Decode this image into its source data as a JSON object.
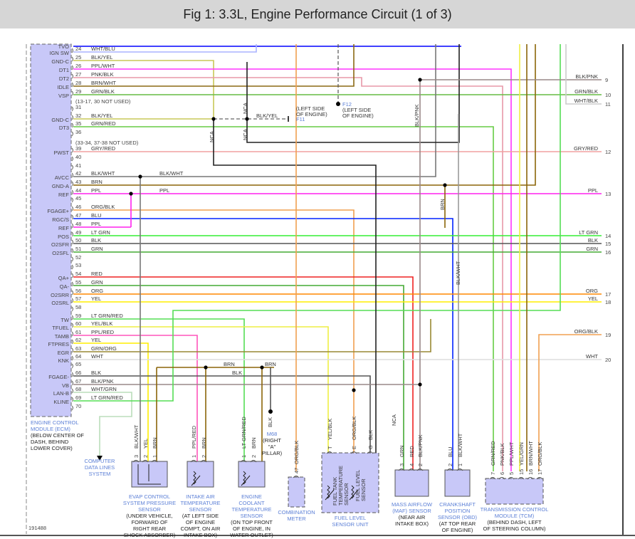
{
  "title": "Fig 1: 3.3L, Engine Performance Circuit (1 of 3)",
  "figure_id": "191488",
  "ecm": {
    "name_lines": [
      "ENGINE CONTROL",
      "MODULE (ECM)"
    ],
    "location_lines": [
      "(BELOW CENTER OF",
      "DASH, BEHIND",
      "LOWER COVER)"
    ],
    "top_pin_name": "TVO",
    "top_pin_color": "#0000ff",
    "notes": [
      "(13-17, 30 NOT USED)",
      "(33-34, 37-38 NOT USED)"
    ],
    "pins": [
      {
        "num": "24",
        "name": "IGN SW",
        "wire": "WHT/BLU",
        "color": "#aab4ff"
      },
      {
        "num": "25",
        "name": "GND-C",
        "wire": "BLK/YEL",
        "color": "#c8c858"
      },
      {
        "num": "26",
        "name": "DT1",
        "wire": "PPL/WHT",
        "color": "#ff33ff"
      },
      {
        "num": "27",
        "name": "DT2",
        "wire": "PNK/BLK",
        "color": "#e898a8"
      },
      {
        "num": "28",
        "name": "IDLE",
        "wire": "BRN/WHT",
        "color": "#8b6914"
      },
      {
        "num": "29",
        "name": "VSP",
        "wire": "GRN/BLK",
        "color": "#66bb44"
      },
      {
        "num": "31",
        "name": "",
        "wire": "",
        "color": ""
      },
      {
        "num": "32",
        "name": "GND-C",
        "wire": "BLK/YEL",
        "color": "#c8c858"
      },
      {
        "num": "35",
        "name": "DT3",
        "wire": "GRN/RED",
        "color": "#66cc44"
      },
      {
        "num": "36",
        "name": "",
        "wire": "",
        "color": ""
      },
      {
        "num": "39",
        "name": "PWST",
        "wire": "GRY/RED",
        "color": "#f0a0a0"
      },
      {
        "num": "40",
        "name": "",
        "wire": "",
        "color": ""
      },
      {
        "num": "41",
        "name": "",
        "wire": "",
        "color": ""
      },
      {
        "num": "42",
        "name": "AVCC",
        "wire": "BLK/WHT",
        "color": "#777777"
      },
      {
        "num": "43",
        "name": "GND-A",
        "wire": "BRN",
        "color": "#8b6508"
      },
      {
        "num": "44",
        "name": "REF",
        "wire": "PPL",
        "color": "#ff22ee"
      },
      {
        "num": "45",
        "name": "",
        "wire": "",
        "color": ""
      },
      {
        "num": "46",
        "name": "FGAGE+",
        "wire": "ORG/BLK",
        "color": "#f0a050"
      },
      {
        "num": "47",
        "name": "RGC/S",
        "wire": "BLU",
        "color": "#0022ff"
      },
      {
        "num": "48",
        "name": "REF",
        "wire": "PPL",
        "color": "#ff22ee"
      },
      {
        "num": "49",
        "name": "POS",
        "wire": "LT GRN",
        "color": "#33ee33"
      },
      {
        "num": "50",
        "name": "O2SFR",
        "wire": "BLK",
        "color": "#555555"
      },
      {
        "num": "51",
        "name": "O2SFL",
        "wire": "GRN",
        "color": "#44aa33"
      },
      {
        "num": "52",
        "name": "",
        "wire": "",
        "color": ""
      },
      {
        "num": "53",
        "name": "",
        "wire": "",
        "color": ""
      },
      {
        "num": "54",
        "name": "QA+",
        "wire": "RED",
        "color": "#ee2222"
      },
      {
        "num": "55",
        "name": "QA-",
        "wire": "GRN",
        "color": "#44aa33"
      },
      {
        "num": "56",
        "name": "O2SRR",
        "wire": "ORG",
        "color": "#ff8800"
      },
      {
        "num": "57",
        "name": "O2SRL",
        "wire": "YEL",
        "color": "#ffee00"
      },
      {
        "num": "58",
        "name": "",
        "wire": "",
        "color": ""
      },
      {
        "num": "59",
        "name": "TW",
        "wire": "LT GRN/RED",
        "color": "#55dd55"
      },
      {
        "num": "60",
        "name": "TFUEL",
        "wire": "YEL/BLK",
        "color": "#eeee44"
      },
      {
        "num": "61",
        "name": "TAMB",
        "wire": "PPL/RED",
        "color": "#ff55bb"
      },
      {
        "num": "62",
        "name": "FTPRES",
        "wire": "YEL",
        "color": "#ffee00"
      },
      {
        "num": "63",
        "name": "EGR",
        "wire": "GRN/ORG",
        "color": "#998833"
      },
      {
        "num": "64",
        "name": "KNK",
        "wire": "WHT",
        "color": "#dddddd"
      },
      {
        "num": "65",
        "name": "",
        "wire": "",
        "color": ""
      },
      {
        "num": "66",
        "name": "FGAGE-",
        "wire": "BLK",
        "color": "#555555"
      },
      {
        "num": "67",
        "name": "VB",
        "wire": "BLK/PNK",
        "color": "#998888"
      },
      {
        "num": "68",
        "name": "LAN-B",
        "wire": "WHT/GRN",
        "color": "#bbddbb"
      },
      {
        "num": "69",
        "name": "KLINE",
        "wire": "LT GRN/RED",
        "color": "#55dd55"
      },
      {
        "num": "70",
        "name": "",
        "wire": "",
        "color": ""
      }
    ]
  },
  "right_connectors": [
    {
      "num": "9",
      "wire": "BLK/PNK"
    },
    {
      "num": "10",
      "wire": "GRN/BLK"
    },
    {
      "num": "11",
      "wire": "WHT/BLK"
    },
    {
      "num": "12",
      "wire": "GRY/RED"
    },
    {
      "num": "13",
      "wire": "PPL"
    },
    {
      "num": "14",
      "wire": "LT GRN"
    },
    {
      "num": "15",
      "wire": "BLK"
    },
    {
      "num": "16",
      "wire": "GRN"
    },
    {
      "num": "17",
      "wire": "ORG"
    },
    {
      "num": "18",
      "wire": "YEL"
    },
    {
      "num": "19",
      "wire": "ORG/BLK"
    },
    {
      "num": "20",
      "wire": "WHT"
    }
  ],
  "mid_labels": {
    "nca": "NCA",
    "blk_yel": "BLK/YEL",
    "f11": "F11",
    "f12": "F12",
    "left_side_engine": [
      "(LEFT SIDE",
      "OF ENGINE)"
    ],
    "blk_wht": "BLK/WHT",
    "ppl": "PPL",
    "blk_pnk": "BLK/PNK",
    "brn": "BRN",
    "blk": "BLK",
    "m68": "M68",
    "m68_loc": [
      "(RIGHT",
      "\"A\"",
      "PILLAR)"
    ]
  },
  "computer_data_lines": [
    "COMPUTER",
    "DATA LINES",
    "SYSTEM"
  ],
  "components": [
    {
      "id": "evap",
      "name": [
        "EVAP CONTROL",
        "SYSTEM PRESSURE",
        "SENSOR"
      ],
      "loc": [
        "(UNDER VEHICLE,",
        "FORWARD OF",
        "RIGHT REAR",
        "SHOCK ABSORBER)"
      ],
      "pins": [
        {
          "num": "3",
          "wire": "BLK/WHT"
        },
        {
          "num": "2",
          "wire": "YEL"
        },
        {
          "num": "1",
          "wire": "BRN"
        }
      ]
    },
    {
      "id": "iat",
      "name": [
        "INTAKE AIR",
        "TEMPERATURE",
        "SENSOR"
      ],
      "loc": [
        "(AT LEFT SIDE",
        "OF ENGINE",
        "COMPT, ON AIR",
        "INTAKE BOX)"
      ],
      "pins": [
        {
          "num": "1",
          "wire": "PPL/RED"
        },
        {
          "num": "2",
          "wire": "BRN"
        }
      ]
    },
    {
      "id": "ect",
      "name": [
        "ENGINE",
        "COOLANT",
        "TEMPERATURE",
        "SENSOR"
      ],
      "loc": [
        "(ON TOP FRONT",
        "OF ENGINE, IN",
        "WATER OUTLET)"
      ],
      "pins": [
        {
          "num": "1",
          "wire": "LT GRN/RED"
        },
        {
          "num": "2",
          "wire": "BRN"
        }
      ]
    },
    {
      "id": "meter",
      "name": [
        "COMBINATION",
        "METER"
      ],
      "loc": [],
      "pins": [
        {
          "num": "47",
          "wire": "ORG/BLK"
        }
      ]
    },
    {
      "id": "fuel",
      "name": [
        "FUEL LEVEL",
        "SENSOR UNIT"
      ],
      "loc": [],
      "inner": [
        "FUEL TANK",
        "TEMPERATURE",
        "SENSOR",
        "FUEL LEVEL",
        "SENSOR"
      ],
      "pins": [
        {
          "num": "T",
          "wire": "YEL/BLK"
        },
        {
          "num": "E",
          "wire": "ORG/BLK"
        },
        {
          "num": "G",
          "wire": "BLK"
        }
      ]
    },
    {
      "id": "maf",
      "name": [
        "MASS AIRFLOW",
        "(MAF) SENSOR"
      ],
      "loc": [
        "(NEAR AIR",
        "INTAKE BOX)"
      ],
      "pins": [
        {
          "num": "3",
          "wire": "GRN"
        },
        {
          "num": "4",
          "wire": "RED"
        },
        {
          "num": "2",
          "wire": "BLK/PNK"
        }
      ]
    },
    {
      "id": "ckp",
      "name": [
        "CRANKSHAFT",
        "POSITION",
        "SENSOR (OBD)"
      ],
      "loc": [
        "(AT TOP REAR",
        "OF ENGINE)"
      ],
      "pins": [
        {
          "num": "2",
          "wire": "BLU"
        },
        {
          "num": "1",
          "wire": "BLK/WHT"
        }
      ]
    },
    {
      "id": "tcm",
      "name": [
        "TRANSMISSION CONTROL",
        "MODULE (TCM)"
      ],
      "loc": [
        "(BEHIND DASH, LEFT",
        "OF STEERING COLUMN)"
      ],
      "pins": [
        {
          "num": "7",
          "wire": "GRN/RED"
        },
        {
          "num": "6",
          "wire": "PNK/BLK"
        },
        {
          "num": "5",
          "wire": "PPL/WHT"
        },
        {
          "num": "15",
          "wire": "YEL/GRN"
        },
        {
          "num": "16",
          "wire": "BRN/WHT"
        },
        {
          "num": "17",
          "wire": "ORG/BLK"
        }
      ]
    }
  ],
  "colors": {
    "module_fill": "#c8c8f8",
    "component_label": "#5b7fd6",
    "title_bar": "#d6d6d6"
  }
}
